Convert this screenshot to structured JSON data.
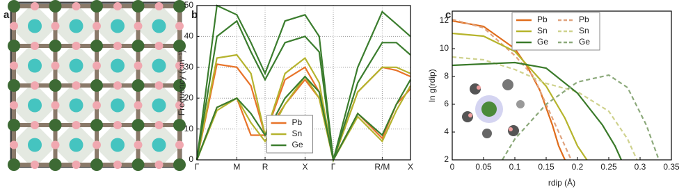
{
  "panel_a": {
    "panel_label": "a"
  },
  "chart_data": [
    {
      "type": "line",
      "panel_label": "b",
      "ylabel": "Frequency (cm⁻¹)",
      "xlim": [
        0,
        3.78
      ],
      "ylim": [
        0,
        50
      ],
      "xticks": [
        {
          "value": 0,
          "label": "Γ"
        },
        {
          "value": 0.707,
          "label": "M"
        },
        {
          "value": 1.207,
          "label": "R"
        },
        {
          "value": 1.914,
          "label": "X"
        },
        {
          "value": 2.414,
          "label": "Γ"
        },
        {
          "value": 3.28,
          "label": "R/M"
        },
        {
          "value": 3.78,
          "label": "X"
        }
      ],
      "yticks": [
        0,
        10,
        20,
        30,
        40,
        50
      ],
      "grid": true,
      "legend": "lower center",
      "x": [
        0,
        0.354,
        0.707,
        0.957,
        1.207,
        1.56,
        1.914,
        2.164,
        2.414,
        2.847,
        3.28,
        3.53,
        3.78
      ],
      "series": [
        {
          "name": "Pb",
          "color": "#e8742a",
          "branches": [
            [
              0,
              31,
              30,
              24,
              8,
              26,
              30,
              22,
              0,
              22,
              30,
              29,
              27
            ],
            [
              0,
              17,
              20,
              8,
              8,
              18,
              26,
              20,
              0,
              15,
              7,
              18,
              23
            ]
          ]
        },
        {
          "name": "Sn",
          "color": "#b5b32e",
          "branches": [
            [
              0,
              33,
              34,
              28,
              8,
              28,
              33,
              25,
              0,
              22,
              30,
              30,
              28
            ],
            [
              0,
              16,
              20,
              12,
              6,
              18,
              27,
              20,
              0,
              14,
              6,
              16,
              24
            ]
          ]
        },
        {
          "name": "Ge",
          "color": "#3b7d2e",
          "branches": [
            [
              0,
              50,
              47,
              38,
              28,
              45,
              47,
              40,
              0,
              30,
              48,
              44,
              40
            ],
            [
              0,
              40,
              45,
              35,
              26,
              38,
              40,
              35,
              0,
              25,
              38,
              38,
              34
            ],
            [
              0,
              17,
              20,
              15,
              8,
              20,
              27,
              22,
              0,
              15,
              8,
              18,
              26
            ]
          ]
        }
      ]
    },
    {
      "type": "line",
      "panel_label": "c",
      "ylabel": "ln g(rdip)",
      "xlabel": "rdip (Å)",
      "xlim": [
        0,
        0.35
      ],
      "ylim": [
        2,
        12.7
      ],
      "xticks": [
        0,
        0.05,
        0.1,
        0.15,
        0.2,
        0.25,
        0.3,
        0.35
      ],
      "yticks": [
        2,
        4,
        6,
        8,
        10,
        12
      ],
      "grid": false,
      "legend": "upper center",
      "series": [
        {
          "name": "Pb",
          "color": "#e06d1c",
          "dashed": false,
          "x": [
            0,
            0.05,
            0.1,
            0.12,
            0.14,
            0.16,
            0.17,
            0.18
          ],
          "values": [
            12,
            11.6,
            10,
            8.7,
            7,
            4.5,
            3,
            2
          ]
        },
        {
          "name": "Pb",
          "color": "#e0a37e",
          "dashed": true,
          "x": [
            0,
            0.05,
            0.1,
            0.13,
            0.16,
            0.18,
            0.19
          ],
          "values": [
            12.1,
            11.5,
            9.5,
            8,
            5,
            3,
            2
          ]
        },
        {
          "name": "Sn",
          "color": "#b6b42c",
          "dashed": false,
          "x": [
            0,
            0.05,
            0.1,
            0.15,
            0.18,
            0.2,
            0.215
          ],
          "values": [
            11.1,
            10.9,
            9.8,
            7.3,
            5,
            3,
            2
          ]
        },
        {
          "name": "Sn",
          "color": "#cfd28e",
          "dashed": true,
          "x": [
            0,
            0.05,
            0.1,
            0.15,
            0.2,
            0.25,
            0.28,
            0.295
          ],
          "values": [
            9.4,
            9.2,
            8.5,
            7.5,
            6.9,
            5.5,
            3.5,
            2
          ]
        },
        {
          "name": "Ge",
          "color": "#3a7a2a",
          "dashed": false,
          "x": [
            0,
            0.05,
            0.1,
            0.15,
            0.2,
            0.24,
            0.26,
            0.27
          ],
          "values": [
            8.8,
            8.9,
            9,
            8.6,
            6.8,
            4.5,
            3,
            2
          ]
        },
        {
          "name": "Ge",
          "color": "#8ca97b",
          "dashed": true,
          "x": [
            0.08,
            0.1,
            0.15,
            0.2,
            0.25,
            0.28,
            0.31,
            0.33
          ],
          "values": [
            2,
            3.5,
            6,
            7.6,
            8.1,
            7.2,
            4.5,
            2
          ]
        }
      ]
    }
  ]
}
